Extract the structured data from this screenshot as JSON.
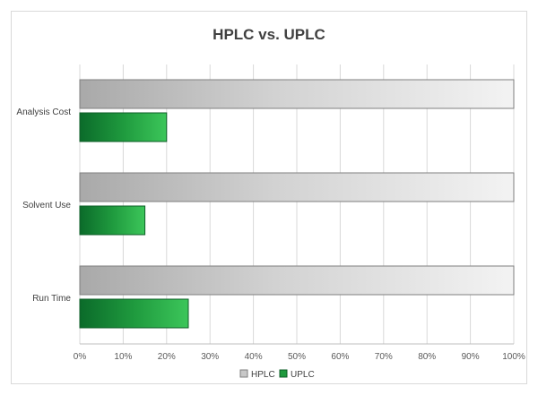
{
  "chart_data": {
    "type": "bar",
    "orientation": "horizontal",
    "title": "HPLC vs. UPLC",
    "xlabel": "",
    "ylabel": "",
    "categories": [
      "Analysis Cost",
      "Solvent Use",
      "Run Time"
    ],
    "series": [
      {
        "name": "HPLC",
        "values": [
          100,
          100,
          100
        ],
        "color": "#c8c8c8"
      },
      {
        "name": "UPLC",
        "values": [
          20,
          15,
          25
        ],
        "color": "#1f9a3e"
      }
    ],
    "xlim": [
      0,
      100
    ],
    "xticks": [
      "0%",
      "10%",
      "20%",
      "30%",
      "40%",
      "50%",
      "60%",
      "70%",
      "80%",
      "90%",
      "100%"
    ],
    "grid": "vertical",
    "legend_position": "bottom"
  }
}
